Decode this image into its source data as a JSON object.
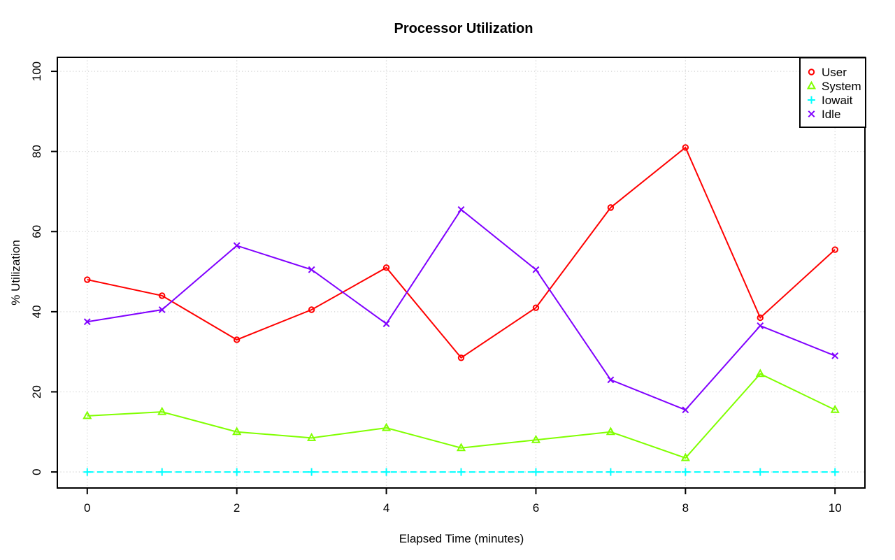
{
  "chart_data": {
    "type": "line",
    "title": "Processor Utilization",
    "xlabel": "Elapsed Time (minutes)",
    "ylabel": "% Utilization",
    "x": [
      0,
      1,
      2,
      3,
      4,
      5,
      6,
      7,
      8,
      9,
      10
    ],
    "xlim": [
      0,
      10
    ],
    "ylim": [
      0,
      100
    ],
    "x_ticks": [
      0,
      2,
      4,
      6,
      8,
      10
    ],
    "y_ticks": [
      0,
      20,
      40,
      60,
      80,
      100
    ],
    "grid": true,
    "grid_color": "#d4d4d4",
    "axis_color": "#000000",
    "background_color": "#ffffff",
    "legend_position": "top-right",
    "series": [
      {
        "name": "User",
        "color": "#ff0000",
        "marker": "circle",
        "line_style": "solid",
        "values": [
          48,
          44,
          33,
          40.5,
          51,
          28.5,
          41,
          66,
          81,
          38.5,
          55.5
        ]
      },
      {
        "name": "System",
        "color": "#80ff00",
        "marker": "triangle",
        "line_style": "solid",
        "values": [
          14,
          15,
          10,
          8.5,
          11,
          6,
          8,
          10,
          3.5,
          24.5,
          15.5
        ]
      },
      {
        "name": "Iowait",
        "color": "#00ffff",
        "marker": "plus",
        "line_style": "dashed",
        "values": [
          0,
          0,
          0,
          0,
          0,
          0,
          0,
          0,
          0,
          0,
          0
        ]
      },
      {
        "name": "Idle",
        "color": "#8000ff",
        "marker": "x",
        "line_style": "solid",
        "values": [
          37.5,
          40.5,
          56.5,
          50.5,
          37,
          65.5,
          50.5,
          23,
          15.5,
          36.5,
          29
        ]
      }
    ]
  }
}
